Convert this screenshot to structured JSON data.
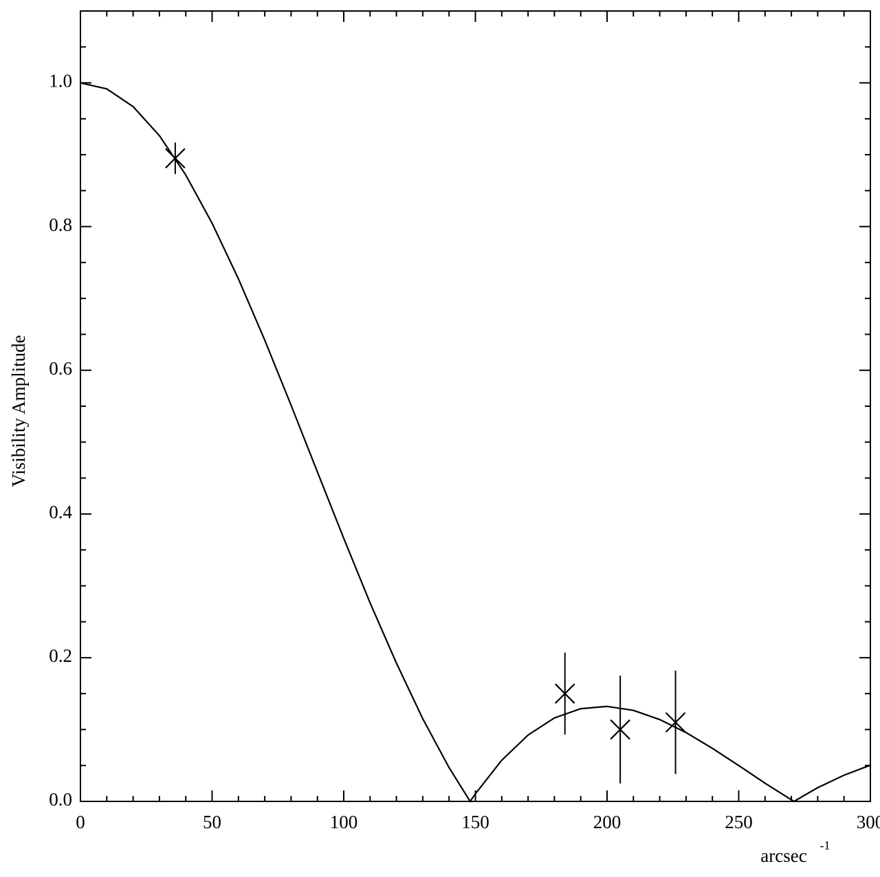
{
  "chart_data": {
    "type": "line",
    "x_label": "arcsec",
    "x_label_exponent": "-1",
    "y_label": "Visibility Amplitude",
    "color": "#000000",
    "xlim": [
      0,
      300
    ],
    "xticks": [
      0,
      50,
      100,
      150,
      200,
      250,
      300
    ],
    "xminor": 5,
    "ylim": [
      0,
      1.1
    ],
    "yticks": [
      {
        "value": 0,
        "label": "0.0"
      },
      0.2,
      0.4,
      0.6,
      0.8,
      {
        "value": 1,
        "label": "1.0"
      }
    ],
    "yminor": 4,
    "curve": {
      "x": [
        0,
        10,
        20,
        30,
        40,
        50,
        60,
        70,
        80,
        90,
        100,
        110,
        120,
        130,
        140,
        148,
        150,
        160,
        170,
        180,
        190,
        200,
        210,
        220,
        230,
        240,
        250,
        260,
        270,
        271,
        280,
        290,
        300
      ],
      "values": [
        1.0,
        0.9916,
        0.9669,
        0.9265,
        0.8718,
        0.8047,
        0.7272,
        0.6419,
        0.5513,
        0.4585,
        0.3661,
        0.2763,
        0.1925,
        0.1151,
        0.047,
        0.0,
        0.0106,
        0.0573,
        0.0923,
        0.1161,
        0.129,
        0.1322,
        0.1267,
        0.1139,
        0.0958,
        0.0738,
        0.0499,
        0.0253,
        0.0022,
        0.0,
        0.0191,
        0.0365,
        0.0504
      ]
    },
    "points": {
      "x": [
        36,
        184,
        205,
        226
      ],
      "values": [
        0.895,
        0.15,
        0.1,
        0.11
      ],
      "errors": [
        0.022,
        0.057,
        0.075,
        0.072
      ]
    }
  }
}
